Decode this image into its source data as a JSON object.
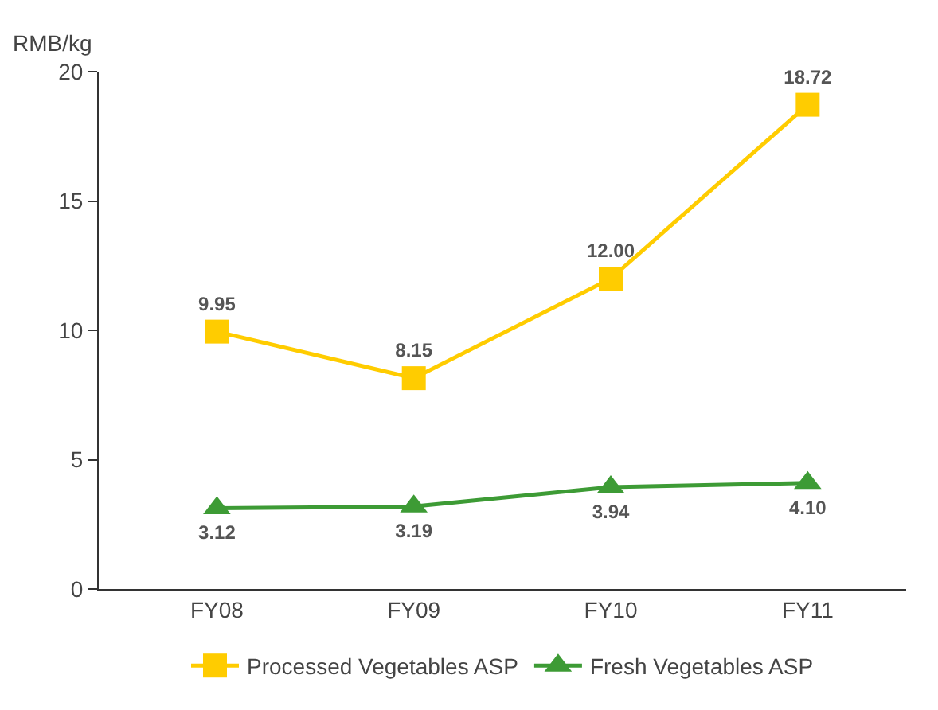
{
  "chart_data": {
    "type": "line",
    "ylabel": "RMB/kg",
    "categories": [
      "FY08",
      "FY09",
      "FY10",
      "FY11"
    ],
    "series": [
      {
        "name": "Processed Vegetables ASP",
        "color": "#ffcc00",
        "marker": "square",
        "values": [
          9.95,
          8.15,
          12.0,
          18.72
        ],
        "value_labels": [
          "9.95",
          "8.15",
          "12.00",
          "18.72"
        ]
      },
      {
        "name": "Fresh Vegetables ASP",
        "color": "#3d9b35",
        "marker": "triangle",
        "values": [
          3.12,
          3.19,
          3.94,
          4.1
        ],
        "value_labels": [
          "3.12",
          "3.19",
          "3.94",
          "4.10"
        ]
      }
    ],
    "ylim": [
      0,
      20
    ],
    "yticks": [
      0,
      5,
      10,
      15,
      20
    ],
    "legend": "bottom",
    "line_style": "solid"
  }
}
